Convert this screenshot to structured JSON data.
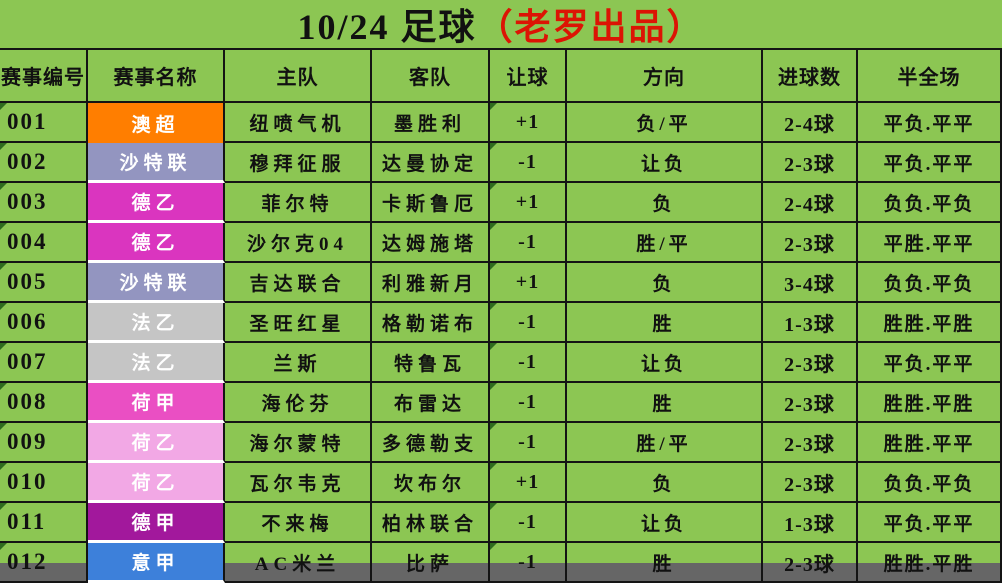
{
  "title": {
    "main": "10/24 足球",
    "suffix": "（老罗出品）"
  },
  "colors": {
    "background": "#8CC653",
    "border": "#141414",
    "title_suffix_red": "#DC1404",
    "league_text": "#FFFFFF",
    "corner_mark_green": "#2E6B1E",
    "leagues": {
      "澳超": "#FF7E00",
      "沙特联": "#9395C0",
      "德乙": "#DA35BF",
      "法乙": "#C5C5C5",
      "荷甲": "#EA4FC3",
      "荷乙": "#F2A8E5",
      "德甲": "#A2189C",
      "意甲": "#3D80DA"
    }
  },
  "table": {
    "headers": [
      "赛事编号",
      "赛事名称",
      "主队",
      "客队",
      "让球",
      "方向",
      "进球数",
      "半全场"
    ],
    "rows": [
      {
        "id": "001",
        "league": "澳超",
        "home": "纽喷气机",
        "away": "墨胜利",
        "handicap": "+1",
        "direction": "负/平",
        "goals": "2-4球",
        "half_full": "平负.平平"
      },
      {
        "id": "002",
        "league": "沙特联",
        "home": "穆拜征服",
        "away": "达曼协定",
        "handicap": "-1",
        "direction": "让负",
        "goals": "2-3球",
        "half_full": "平负.平平"
      },
      {
        "id": "003",
        "league": "德乙",
        "home": "菲尔特",
        "away": "卡斯鲁厄",
        "handicap": "+1",
        "direction": "负",
        "goals": "2-4球",
        "half_full": "负负.平负"
      },
      {
        "id": "004",
        "league": "德乙",
        "home": "沙尔克04",
        "away": "达姆施塔",
        "handicap": "-1",
        "direction": "胜/平",
        "goals": "2-3球",
        "half_full": "平胜.平平"
      },
      {
        "id": "005",
        "league": "沙特联",
        "home": "吉达联合",
        "away": "利雅新月",
        "handicap": "+1",
        "direction": "负",
        "goals": "3-4球",
        "half_full": "负负.平负"
      },
      {
        "id": "006",
        "league": "法乙",
        "home": "圣旺红星",
        "away": "格勒诺布",
        "handicap": "-1",
        "direction": "胜",
        "goals": "1-3球",
        "half_full": "胜胜.平胜"
      },
      {
        "id": "007",
        "league": "法乙",
        "home": "兰斯",
        "away": "特鲁瓦",
        "handicap": "-1",
        "direction": "让负",
        "goals": "2-3球",
        "half_full": "平负.平平"
      },
      {
        "id": "008",
        "league": "荷甲",
        "home": "海伦芬",
        "away": "布雷达",
        "handicap": "-1",
        "direction": "胜",
        "goals": "2-3球",
        "half_full": "胜胜.平胜"
      },
      {
        "id": "009",
        "league": "荷乙",
        "home": "海尔蒙特",
        "away": "多德勒支",
        "handicap": "-1",
        "direction": "胜/平",
        "goals": "2-3球",
        "half_full": "胜胜.平平"
      },
      {
        "id": "010",
        "league": "荷乙",
        "home": "瓦尔韦克",
        "away": "坎布尔",
        "handicap": "+1",
        "direction": "负",
        "goals": "2-3球",
        "half_full": "负负.平负"
      },
      {
        "id": "011",
        "league": "德甲",
        "home": "不来梅",
        "away": "柏林联合",
        "handicap": "-1",
        "direction": "让负",
        "goals": "1-3球",
        "half_full": "平负.平平"
      },
      {
        "id": "012",
        "league": "意甲",
        "home": "AC米兰",
        "away": "比萨",
        "handicap": "-1",
        "direction": "胜",
        "goals": "2-3球",
        "half_full": "胜胜.平胜"
      }
    ]
  }
}
